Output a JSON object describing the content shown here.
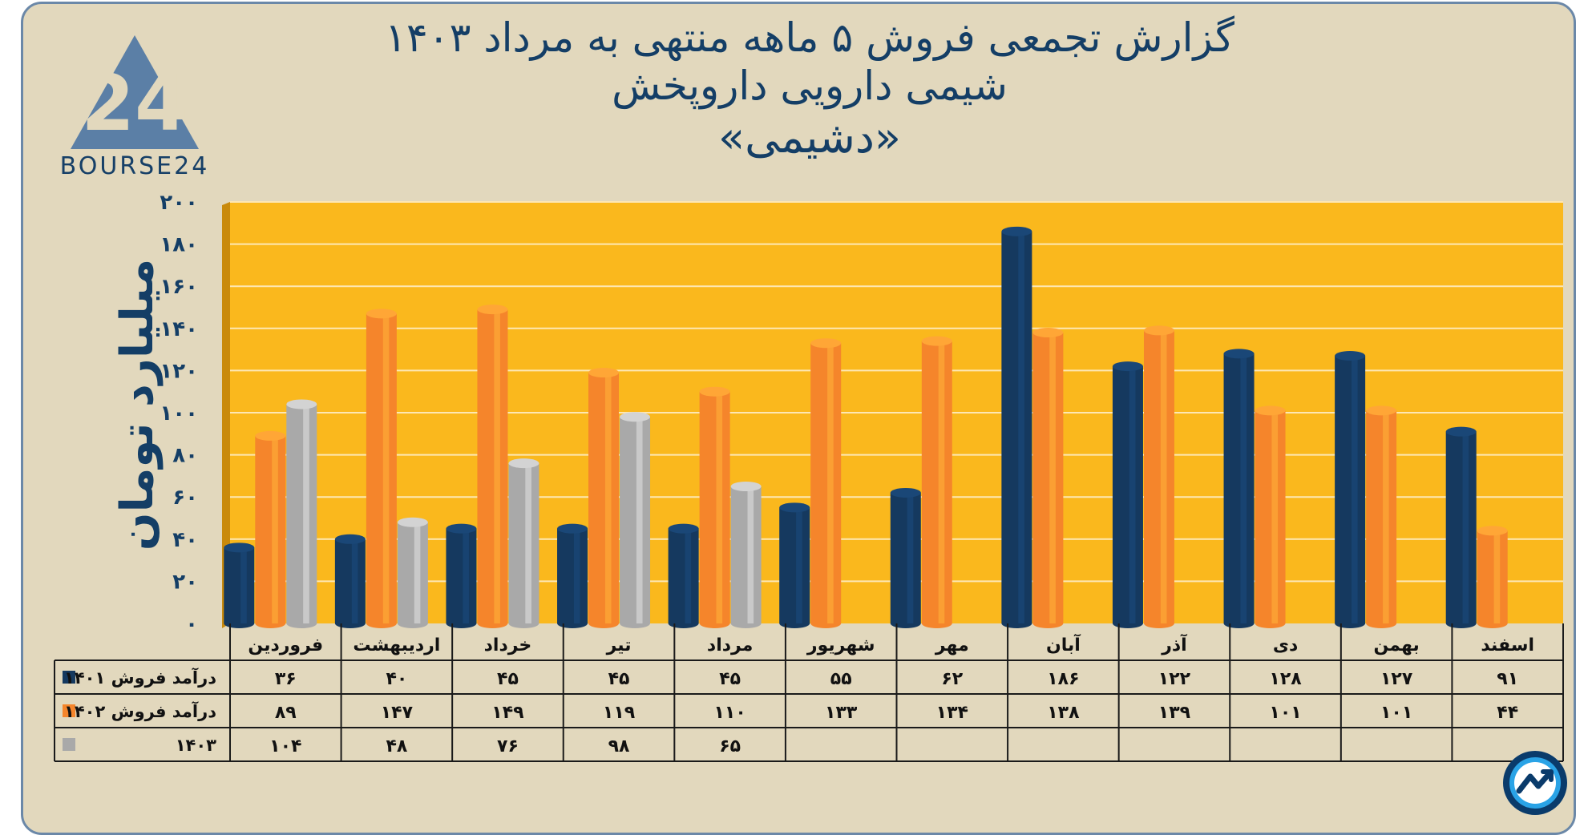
{
  "title_lines": [
    "گزارش تجمعی فروش ۵ ماهه منتهی به مرداد ۱۴۰۳",
    "شیمی دارویی داروپخش",
    "«دشیمی»"
  ],
  "logo": {
    "number": "24",
    "text": "BOURSE24",
    "icon": "triangle-logo-icon"
  },
  "corner_icon": "trend-arrow-icon",
  "colors": {
    "plot_bg": "#fab81d",
    "page_bg": "#e2d8bd",
    "series": [
      "#15395f",
      "#f5852b",
      "#a9a9a9"
    ],
    "text": "#143e66"
  },
  "chart_data": {
    "type": "bar",
    "ylabel": "میلیارد تومان",
    "ylim": [
      0,
      200
    ],
    "yticks": [
      0,
      20,
      40,
      60,
      80,
      100,
      120,
      140,
      160,
      180,
      200
    ],
    "ytick_labels": [
      "۰",
      "۲۰",
      "۴۰",
      "۶۰",
      "۸۰",
      "۱۰۰",
      "۱۲۰",
      "۱۴۰",
      "۱۶۰",
      "۱۸۰",
      "۲۰۰"
    ],
    "grid": true,
    "legend": "table-left",
    "categories": [
      "فروردین",
      "اردیبهشت",
      "خرداد",
      "تیر",
      "مرداد",
      "شهریور",
      "مهر",
      "آبان",
      "آذر",
      "دی",
      "بهمن",
      "اسفند"
    ],
    "series": [
      {
        "name": "درآمد فروش ۱۴۰۱",
        "values": [
          36,
          40,
          45,
          45,
          45,
          55,
          62,
          186,
          122,
          128,
          127,
          91
        ],
        "labels": [
          "۳۶",
          "۴۰",
          "۴۵",
          "۴۵",
          "۴۵",
          "۵۵",
          "۶۲",
          "۱۸۶",
          "۱۲۲",
          "۱۲۸",
          "۱۲۷",
          "۹۱"
        ]
      },
      {
        "name": "درآمد فروش ۱۴۰۲",
        "values": [
          89,
          147,
          149,
          119,
          110,
          133,
          134,
          138,
          139,
          101,
          101,
          44
        ],
        "labels": [
          "۸۹",
          "۱۴۷",
          "۱۴۹",
          "۱۱۹",
          "۱۱۰",
          "۱۳۳",
          "۱۳۴",
          "۱۳۸",
          "۱۳۹",
          "۱۰۱",
          "۱۰۱",
          "۴۴"
        ]
      },
      {
        "name": "۱۴۰۳",
        "values": [
          104,
          48,
          76,
          98,
          65,
          null,
          null,
          null,
          null,
          null,
          null,
          null
        ],
        "labels": [
          "۱۰۴",
          "۴۸",
          "۷۶",
          "۹۸",
          "۶۵",
          "",
          "",
          "",
          "",
          "",
          "",
          ""
        ]
      }
    ]
  }
}
